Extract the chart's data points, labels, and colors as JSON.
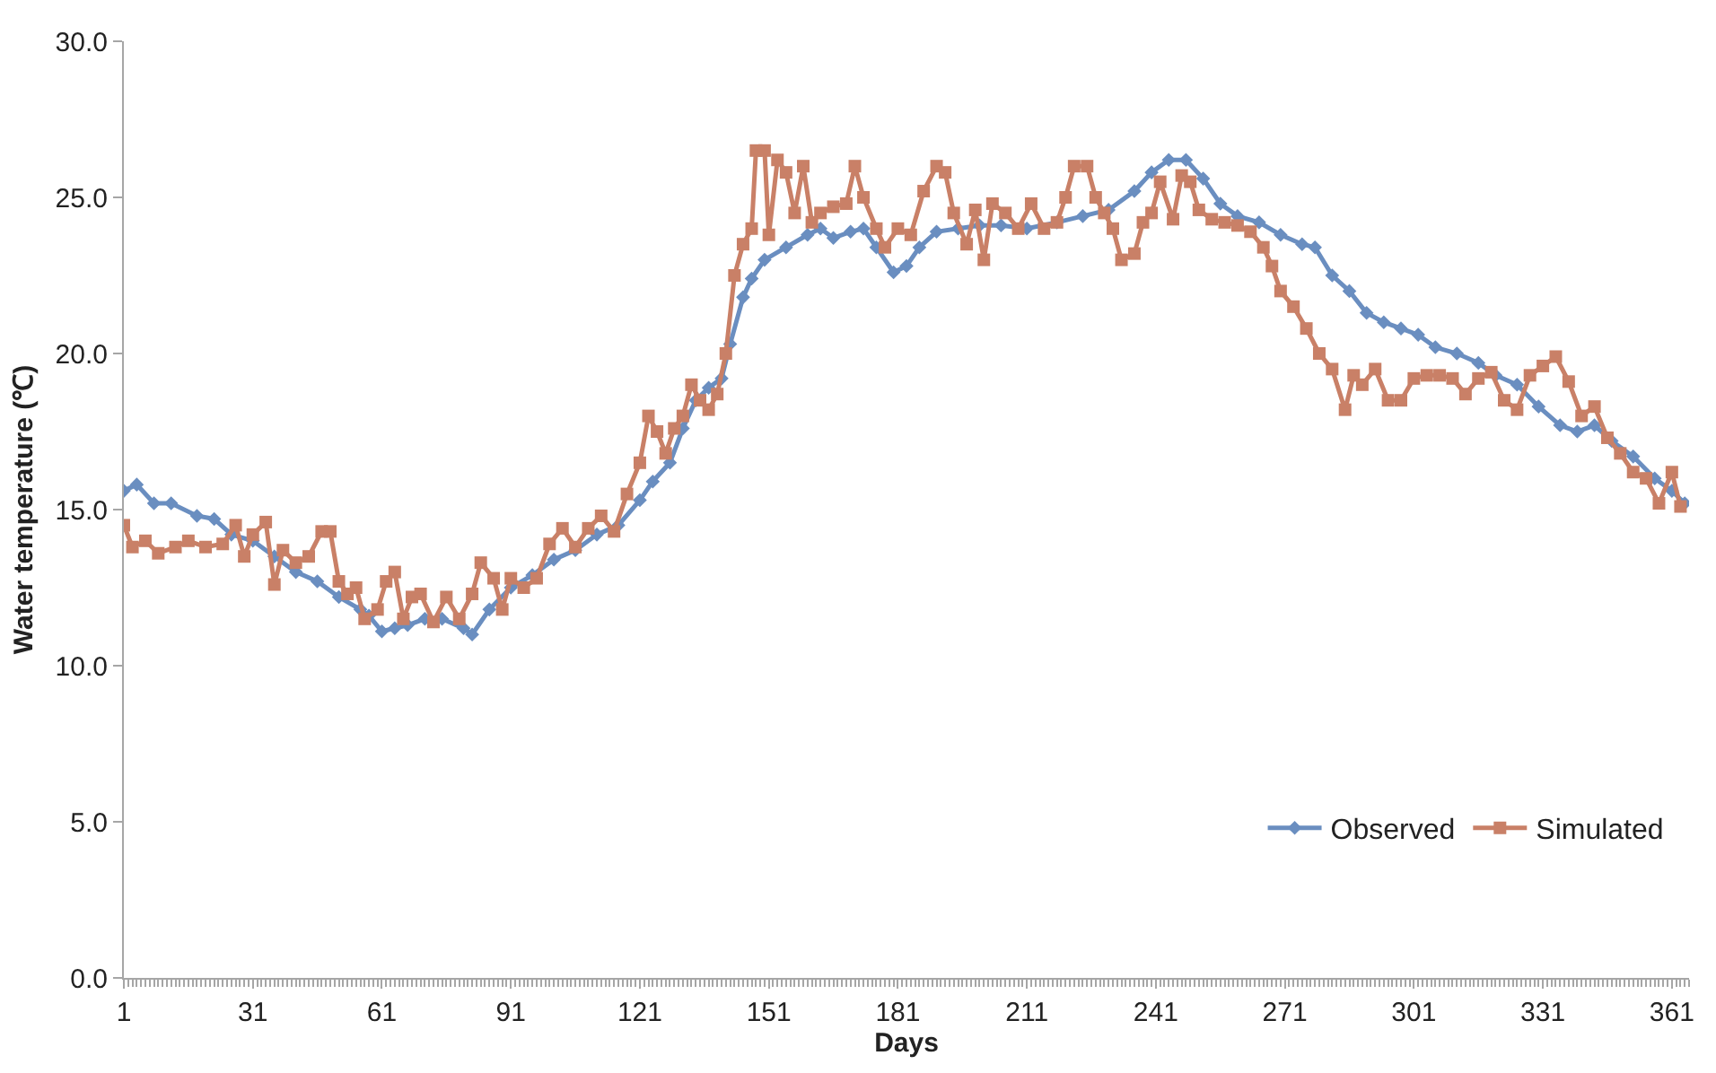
{
  "chart_data": {
    "type": "line",
    "xlabel": "Days",
    "ylabel": "Water temperature (℃)",
    "xlim": [
      1,
      365
    ],
    "xticks": [
      1,
      31,
      61,
      91,
      121,
      151,
      181,
      211,
      241,
      271,
      301,
      331,
      361
    ],
    "ylim": [
      0,
      30
    ],
    "yticks": [
      {
        "value": 0,
        "label": "0.0"
      },
      {
        "value": 5,
        "label": "5.0"
      },
      {
        "value": 10,
        "label": "10.0"
      },
      {
        "value": 15,
        "label": "15.0"
      },
      {
        "value": 20,
        "label": "20.0"
      },
      {
        "value": 25,
        "label": "25.0"
      },
      {
        "value": 30,
        "label": "30.0"
      }
    ],
    "legend": "bottom right",
    "line_style": "solid",
    "series": [
      {
        "name": "Observed",
        "color": "#6a8ec0",
        "marker": "diamond",
        "x": [
          1,
          4,
          8,
          12,
          18,
          22,
          26,
          31,
          36,
          41,
          46,
          51,
          56,
          58,
          61,
          64,
          67,
          71,
          75,
          80,
          82,
          86,
          91,
          96,
          101,
          106,
          111,
          116,
          121,
          124,
          128,
          131,
          134,
          137,
          140,
          142,
          145,
          147,
          150,
          155,
          160,
          163,
          166,
          170,
          173,
          176,
          180,
          183,
          186,
          190,
          195,
          200,
          205,
          211,
          218,
          224,
          230,
          236,
          240,
          244,
          248,
          252,
          256,
          260,
          265,
          270,
          275,
          278,
          282,
          286,
          290,
          294,
          298,
          302,
          306,
          311,
          316,
          320,
          325,
          330,
          335,
          339,
          343,
          347,
          352,
          357,
          361,
          364
        ],
        "values": [
          15.6,
          15.8,
          15.2,
          15.2,
          14.8,
          14.7,
          14.2,
          14.0,
          13.5,
          13.0,
          12.7,
          12.2,
          11.8,
          11.6,
          11.1,
          11.2,
          11.3,
          11.5,
          11.5,
          11.2,
          11.0,
          11.8,
          12.5,
          12.9,
          13.4,
          13.7,
          14.2,
          14.5,
          15.3,
          15.9,
          16.5,
          17.6,
          18.5,
          18.9,
          19.2,
          20.3,
          21.8,
          22.4,
          23.0,
          23.4,
          23.8,
          24.0,
          23.7,
          23.9,
          24.0,
          23.4,
          22.6,
          22.8,
          23.4,
          23.9,
          24.0,
          24.1,
          24.1,
          24.0,
          24.2,
          24.4,
          24.6,
          25.2,
          25.8,
          26.2,
          26.2,
          25.6,
          24.8,
          24.4,
          24.2,
          23.8,
          23.5,
          23.4,
          22.5,
          22.0,
          21.3,
          21.0,
          20.8,
          20.6,
          20.2,
          20.0,
          19.7,
          19.3,
          19.0,
          18.3,
          17.7,
          17.5,
          17.7,
          17.2,
          16.7,
          16.0,
          15.6,
          15.2
        ]
      },
      {
        "name": "Simulated",
        "color": "#c98067",
        "marker": "square",
        "x": [
          1,
          3,
          6,
          9,
          13,
          16,
          20,
          24,
          27,
          29,
          31,
          34,
          36,
          38,
          41,
          44,
          47,
          49,
          51,
          53,
          55,
          57,
          60,
          62,
          64,
          66,
          68,
          70,
          73,
          76,
          79,
          82,
          84,
          87,
          89,
          91,
          94,
          97,
          100,
          103,
          106,
          109,
          112,
          115,
          118,
          121,
          123,
          125,
          127,
          129,
          131,
          133,
          135,
          137,
          139,
          141,
          143,
          145,
          147,
          148,
          150,
          151,
          153,
          155,
          157,
          159,
          161,
          163,
          166,
          169,
          171,
          173,
          176,
          178,
          181,
          184,
          187,
          190,
          192,
          194,
          197,
          199,
          201,
          203,
          206,
          209,
          212,
          215,
          218,
          220,
          222,
          225,
          227,
          229,
          231,
          233,
          236,
          238,
          240,
          242,
          245,
          247,
          249,
          251,
          254,
          257,
          260,
          263,
          266,
          268,
          270,
          273,
          276,
          279,
          282,
          285,
          287,
          289,
          292,
          295,
          298,
          301,
          304,
          307,
          310,
          313,
          316,
          319,
          322,
          325,
          328,
          331,
          334,
          337,
          340,
          343,
          346,
          349,
          352,
          355,
          358,
          361,
          363
        ],
        "values": [
          14.5,
          13.8,
          14.0,
          13.6,
          13.8,
          14.0,
          13.8,
          13.9,
          14.5,
          13.5,
          14.2,
          14.6,
          12.6,
          13.7,
          13.3,
          13.5,
          14.3,
          14.3,
          12.7,
          12.3,
          12.5,
          11.5,
          11.8,
          12.7,
          13.0,
          11.5,
          12.2,
          12.3,
          11.4,
          12.2,
          11.5,
          12.3,
          13.3,
          12.8,
          11.8,
          12.8,
          12.5,
          12.8,
          13.9,
          14.4,
          13.8,
          14.4,
          14.8,
          14.3,
          15.5,
          16.5,
          18.0,
          17.5,
          16.8,
          17.6,
          18.0,
          19.0,
          18.5,
          18.2,
          18.7,
          20.0,
          22.5,
          23.5,
          24.0,
          26.5,
          26.5,
          23.8,
          26.2,
          25.8,
          24.5,
          26.0,
          24.2,
          24.5,
          24.7,
          24.8,
          26.0,
          25.0,
          24.0,
          23.4,
          24.0,
          23.8,
          25.2,
          26.0,
          25.8,
          24.5,
          23.5,
          24.6,
          23.0,
          24.8,
          24.5,
          24.0,
          24.8,
          24.0,
          24.2,
          25.0,
          26.0,
          26.0,
          25.0,
          24.5,
          24.0,
          23.0,
          23.2,
          24.2,
          24.5,
          25.5,
          24.3,
          25.7,
          25.5,
          24.6,
          24.3,
          24.2,
          24.1,
          23.9,
          23.4,
          22.8,
          22.0,
          21.5,
          20.8,
          20.0,
          19.5,
          18.2,
          19.3,
          19.0,
          19.5,
          18.5,
          18.5,
          19.2,
          19.3,
          19.3,
          19.2,
          18.7,
          19.2,
          19.4,
          18.5,
          18.2,
          19.3,
          19.6,
          19.9,
          19.1,
          18.0,
          18.3,
          17.3,
          16.8,
          16.2,
          16.0,
          15.2,
          16.2,
          15.1
        ]
      }
    ]
  }
}
